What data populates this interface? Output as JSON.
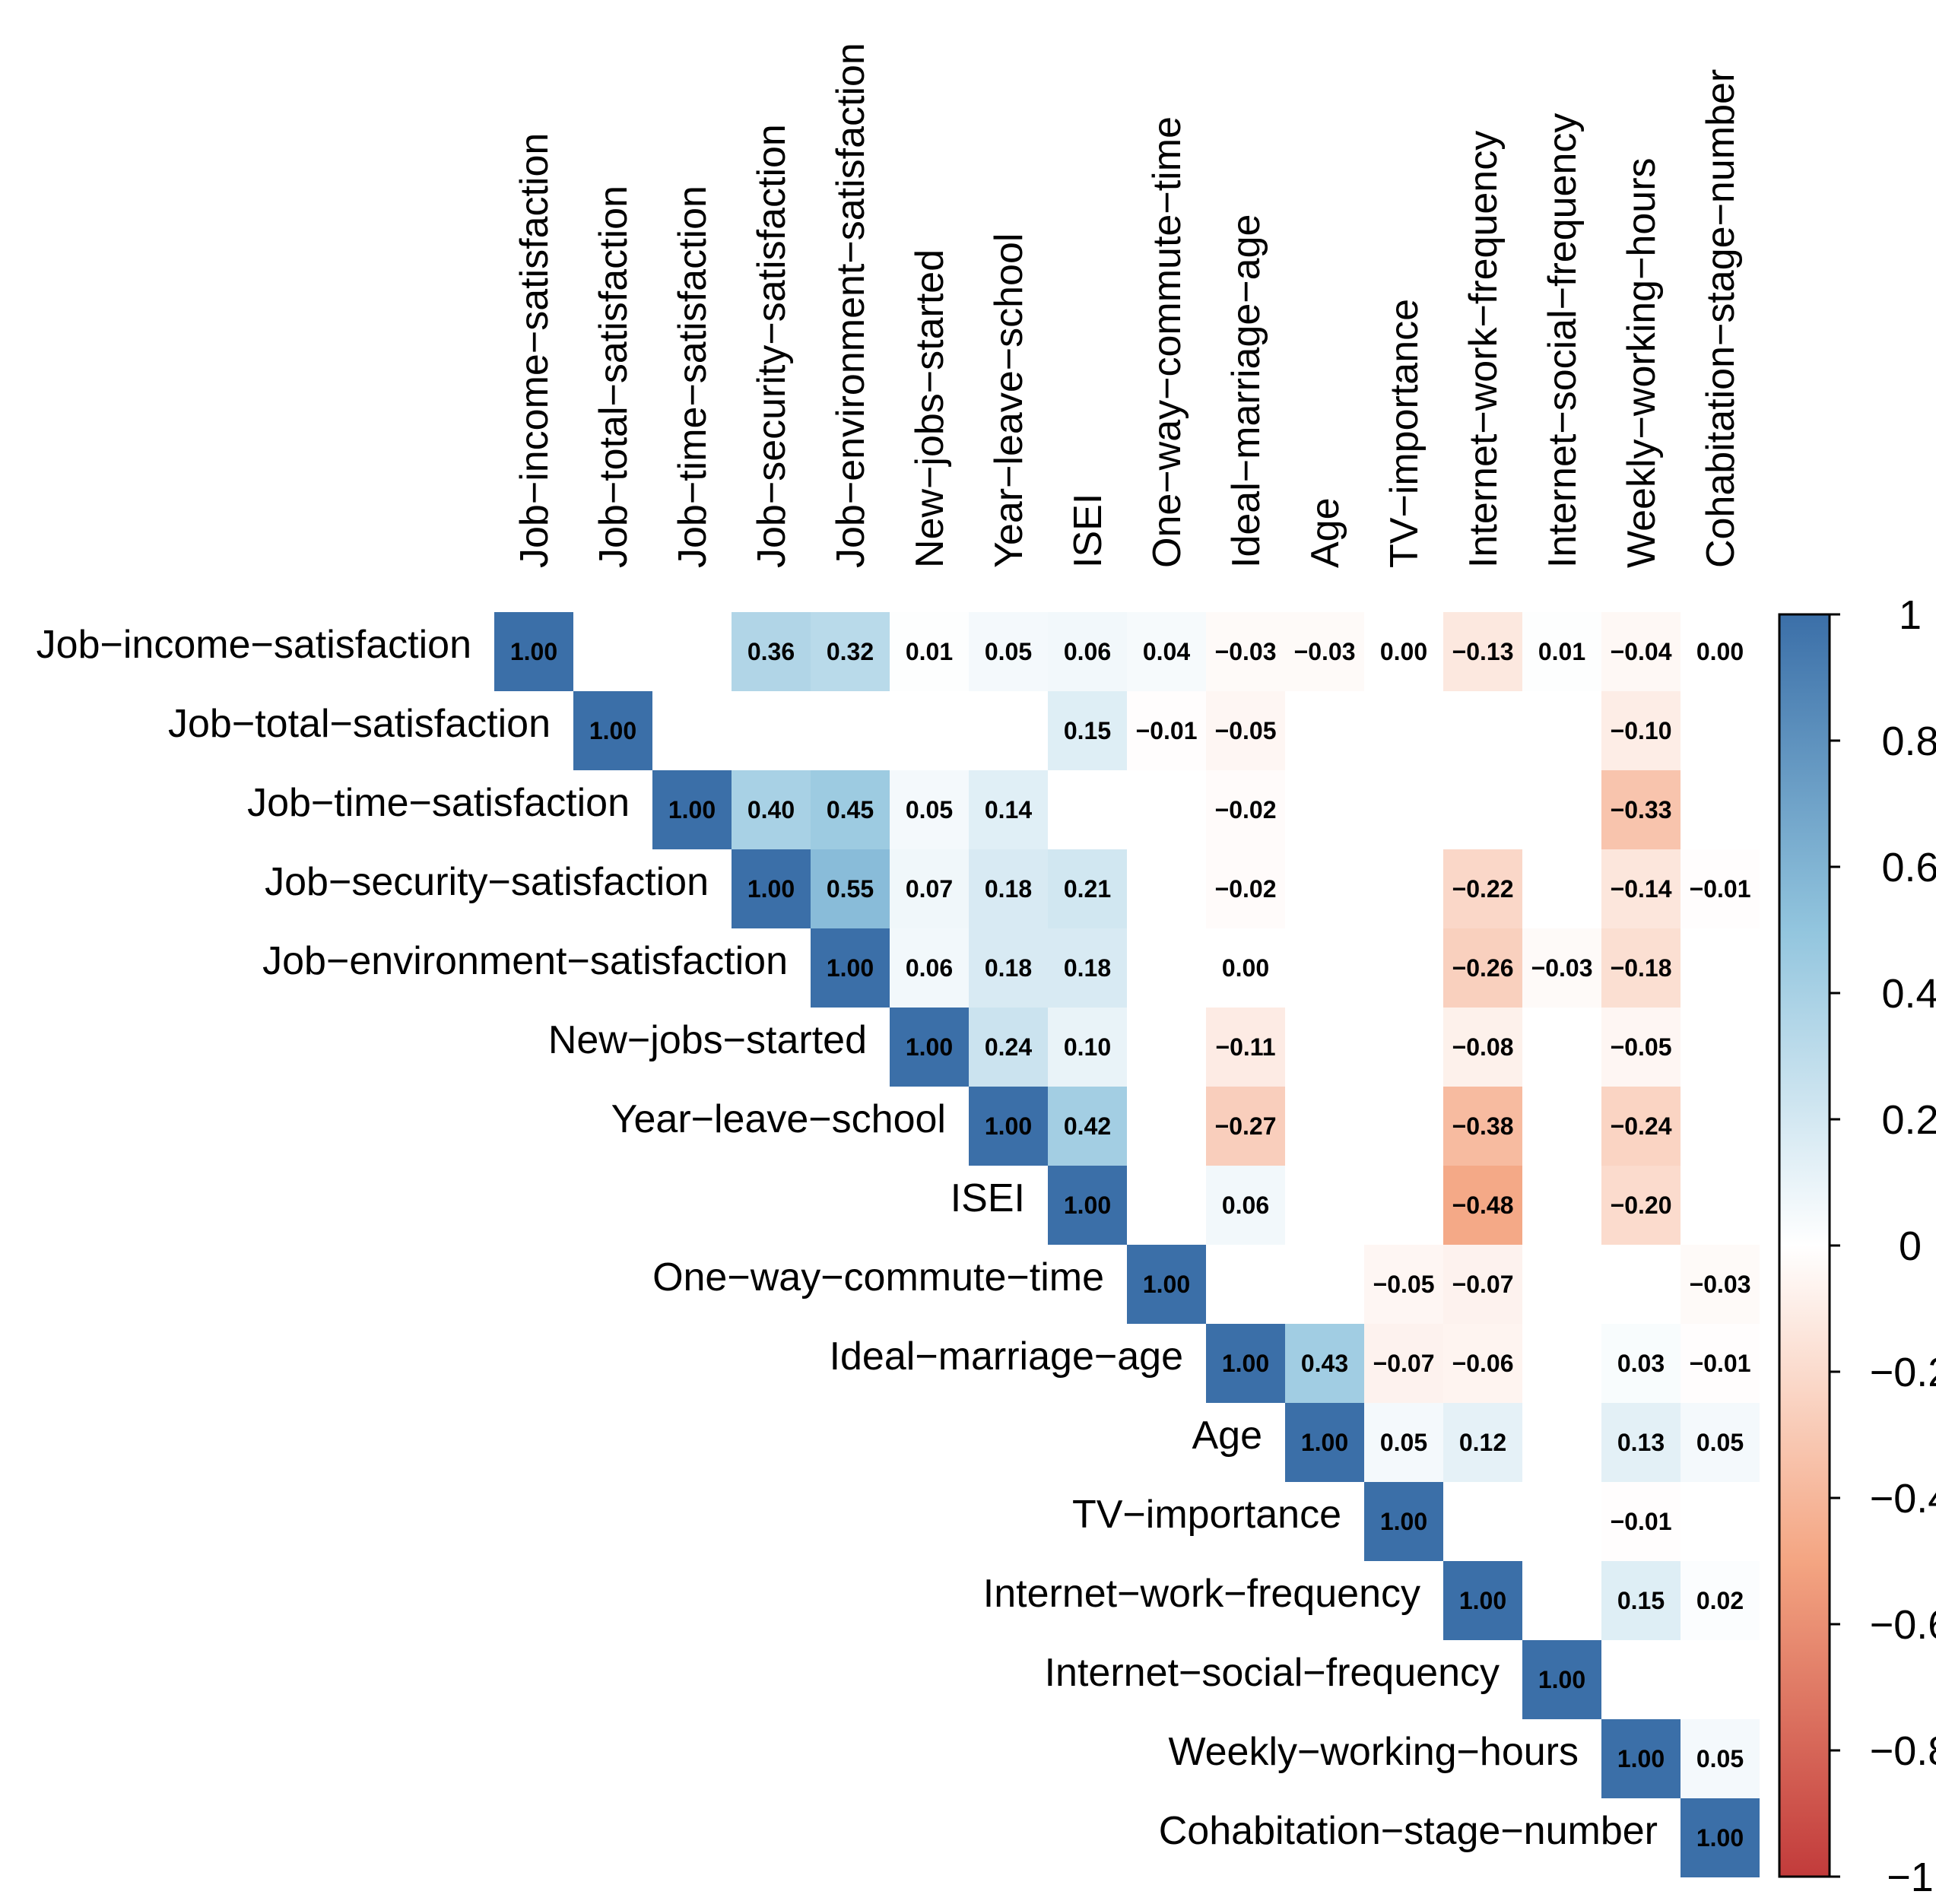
{
  "chart_data": {
    "type": "heatmap",
    "subtype": "correlation-upper-triangle",
    "variables": [
      "Job−income−satisfaction",
      "Job−total−satisfaction",
      "Job−time−satisfaction",
      "Job−security−satisfaction",
      "Job−environment−satisfaction",
      "New−jobs−started",
      "Year−leave−school",
      "ISEI",
      "One−way−commute−time",
      "Ideal−marriage−age",
      "Age",
      "TV−importance",
      "Internet−work−frequency",
      "Internet−social−frequency",
      "Weekly−working−hours",
      "Cohabitation−stage−number"
    ],
    "matrix": [
      [
        1.0,
        null,
        null,
        0.36,
        0.32,
        0.01,
        0.05,
        0.06,
        0.04,
        -0.03,
        -0.03,
        0.0,
        -0.13,
        0.01,
        -0.04,
        0.0
      ],
      [
        null,
        1.0,
        null,
        null,
        null,
        null,
        null,
        0.15,
        -0.01,
        -0.05,
        null,
        null,
        null,
        null,
        -0.1,
        null
      ],
      [
        null,
        null,
        1.0,
        0.4,
        0.45,
        0.05,
        0.14,
        null,
        null,
        -0.02,
        null,
        null,
        null,
        null,
        -0.33,
        null
      ],
      [
        null,
        null,
        null,
        1.0,
        0.55,
        0.07,
        0.18,
        0.21,
        null,
        -0.02,
        null,
        null,
        -0.22,
        null,
        -0.14,
        -0.01
      ],
      [
        null,
        null,
        null,
        null,
        1.0,
        0.06,
        0.18,
        0.18,
        null,
        0.0,
        null,
        null,
        -0.26,
        -0.03,
        -0.18,
        null
      ],
      [
        null,
        null,
        null,
        null,
        null,
        1.0,
        0.24,
        0.1,
        null,
        -0.11,
        null,
        null,
        -0.08,
        null,
        -0.05,
        null
      ],
      [
        null,
        null,
        null,
        null,
        null,
        null,
        1.0,
        0.42,
        null,
        -0.27,
        null,
        null,
        -0.38,
        null,
        -0.24,
        null
      ],
      [
        null,
        null,
        null,
        null,
        null,
        null,
        null,
        1.0,
        null,
        0.06,
        null,
        null,
        -0.48,
        null,
        -0.2,
        null
      ],
      [
        null,
        null,
        null,
        null,
        null,
        null,
        null,
        null,
        1.0,
        null,
        null,
        -0.05,
        -0.07,
        null,
        null,
        -0.03
      ],
      [
        null,
        null,
        null,
        null,
        null,
        null,
        null,
        null,
        null,
        1.0,
        0.43,
        -0.07,
        -0.06,
        null,
        0.03,
        -0.01
      ],
      [
        null,
        null,
        null,
        null,
        null,
        null,
        null,
        null,
        null,
        null,
        1.0,
        0.05,
        0.12,
        null,
        0.13,
        0.05
      ],
      [
        null,
        null,
        null,
        null,
        null,
        null,
        null,
        null,
        null,
        null,
        null,
        1.0,
        null,
        null,
        -0.01,
        null
      ],
      [
        null,
        null,
        null,
        null,
        null,
        null,
        null,
        null,
        null,
        null,
        null,
        null,
        1.0,
        null,
        0.15,
        0.02
      ],
      [
        null,
        null,
        null,
        null,
        null,
        null,
        null,
        null,
        null,
        null,
        null,
        null,
        null,
        1.0,
        null,
        null
      ],
      [
        null,
        null,
        null,
        null,
        null,
        null,
        null,
        null,
        null,
        null,
        null,
        null,
        null,
        null,
        1.0,
        0.05
      ],
      [
        null,
        null,
        null,
        null,
        null,
        null,
        null,
        null,
        null,
        null,
        null,
        null,
        null,
        null,
        null,
        1.0
      ]
    ],
    "value_format": "2 decimals",
    "color_scale": {
      "min": -1,
      "max": 1,
      "low_color": "#C23B3B",
      "mid_color": "#FFFFFF",
      "high_color": "#3B6FA8",
      "low_mid_color": "#F4A582",
      "high_mid_color": "#92C5DE"
    },
    "legend": {
      "position": "right",
      "ticks": [
        1,
        0.8,
        0.6,
        0.4,
        0.2,
        0,
        -0.2,
        -0.4,
        -0.6,
        -0.8,
        -1
      ],
      "tick_labels": [
        "1",
        "0.8",
        "0.6",
        "0.4",
        "0.2",
        "0",
        "−0.2",
        "−0.4",
        "−0.6",
        "−0.8",
        "−1"
      ]
    },
    "title": "",
    "xlabel": "",
    "ylabel": ""
  }
}
